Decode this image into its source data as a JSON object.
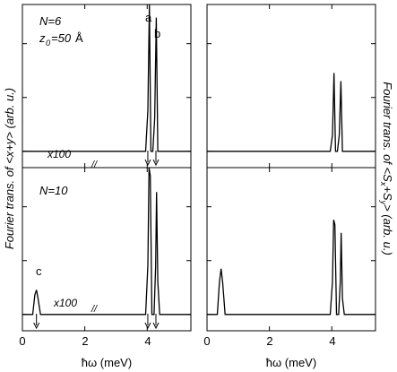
{
  "chart_data": [
    {
      "type": "line",
      "panel": "top-left",
      "annotations": [
        "N=6",
        "z",
        "0",
        "=50",
        "Å",
        "a",
        "b",
        "x100",
        "//"
      ],
      "xlim": [
        0,
        5.4
      ],
      "x_ticks": [
        0,
        2,
        4
      ],
      "series": [
        {
          "x": [
            0,
            3.95,
            4.02,
            4.07,
            4.12,
            4.18,
            4.24,
            4.29,
            4.34,
            4.4,
            5.4
          ],
          "y": [
            0.1,
            0.1,
            0.35,
            1.0,
            0.1,
            0.1,
            0.3,
            0.92,
            0.1,
            0.1,
            0.1
          ]
        }
      ],
      "arrows_down_at_x": [
        4.02,
        4.28
      ]
    },
    {
      "type": "line",
      "panel": "top-right",
      "xlim": [
        0,
        5.4
      ],
      "x_ticks": [
        0,
        2,
        4
      ],
      "series": [
        {
          "x": [
            0,
            3.95,
            4.02,
            4.07,
            4.12,
            4.18,
            4.24,
            4.29,
            4.34,
            4.4,
            5.4
          ],
          "y": [
            0.1,
            0.1,
            0.2,
            0.58,
            0.1,
            0.1,
            0.2,
            0.53,
            0.1,
            0.1,
            0.1
          ]
        }
      ]
    },
    {
      "type": "line",
      "panel": "bottom-left",
      "annotations": [
        "N=10",
        "c",
        "x100",
        "//"
      ],
      "xlim": [
        0,
        5.4
      ],
      "x_ticks": [
        0,
        2,
        4
      ],
      "x_tick_labels": [
        "0",
        "2",
        "4"
      ],
      "xlabel": "ħω (meV)",
      "series": [
        {
          "x": [
            0,
            0.33,
            0.4,
            0.45,
            0.5,
            0.58,
            3.95,
            4.02,
            4.06,
            4.1,
            4.15,
            4.22,
            4.27,
            4.3,
            4.34,
            4.4,
            5.4
          ],
          "y": [
            0.1,
            0.1,
            0.22,
            0.25,
            0.2,
            0.1,
            0.1,
            0.4,
            1.0,
            0.95,
            0.1,
            0.1,
            0.4,
            0.85,
            0.3,
            0.1,
            0.1
          ]
        }
      ],
      "arrows_down_at_x": [
        0.45,
        4.02,
        4.28
      ]
    },
    {
      "type": "line",
      "panel": "bottom-right",
      "xlim": [
        0,
        5.4
      ],
      "x_ticks": [
        0,
        2,
        4
      ],
      "x_tick_labels": [
        "0",
        "2",
        "4"
      ],
      "xlabel": "ħω (meV)",
      "series": [
        {
          "x": [
            0,
            0.33,
            0.4,
            0.45,
            0.5,
            0.58,
            3.95,
            4.02,
            4.06,
            4.1,
            4.15,
            4.22,
            4.27,
            4.3,
            4.34,
            4.4,
            5.4
          ],
          "y": [
            0.1,
            0.1,
            0.3,
            0.38,
            0.3,
            0.1,
            0.1,
            0.3,
            0.68,
            0.65,
            0.1,
            0.1,
            0.3,
            0.6,
            0.2,
            0.1,
            0.1
          ]
        }
      ]
    }
  ],
  "left_axis_label": "Fourier trans. of <x+y>  (arb. u.)",
  "right_axis_label_parts": [
    "Fourier trans. of <S",
    "x",
    "+S",
    "y",
    ">  (arb. u.)"
  ]
}
